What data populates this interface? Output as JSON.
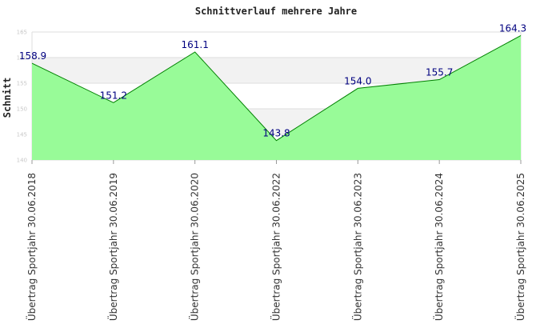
{
  "chart_data": {
    "type": "area",
    "title": "Schnittverlauf mehrere Jahre",
    "ylabel": "Schnitt",
    "xlabel": "",
    "ylim": [
      140,
      165
    ],
    "yticks": [
      140,
      145,
      150,
      155,
      160,
      165
    ],
    "categories": [
      "Übertrag Sportjahr 30.06.2018",
      "Übertrag Sportjahr 30.06.2019",
      "Übertrag Sportjahr 30.06.2020",
      "Übertrag Sportjahr 30.06.2022",
      "Übertrag Sportjahr 30.06.2023",
      "Übertrag Sportjahr 30.06.2024",
      "Übertrag Sportjahr 30.06.2025"
    ],
    "values": [
      158.9,
      151.2,
      161.1,
      143.8,
      154.0,
      155.7,
      164.3
    ],
    "value_labels": [
      "158.9",
      "151.2",
      "161.1",
      "143.8",
      "154.0",
      "155.7",
      "164.3"
    ],
    "grid": true,
    "legend": "none",
    "colors": {
      "fill": "#98fb98",
      "line": "#008000",
      "label": "#000080",
      "band": "#f2f2f2",
      "grid": "#dddddd",
      "tick": "#c8c8c8"
    }
  }
}
